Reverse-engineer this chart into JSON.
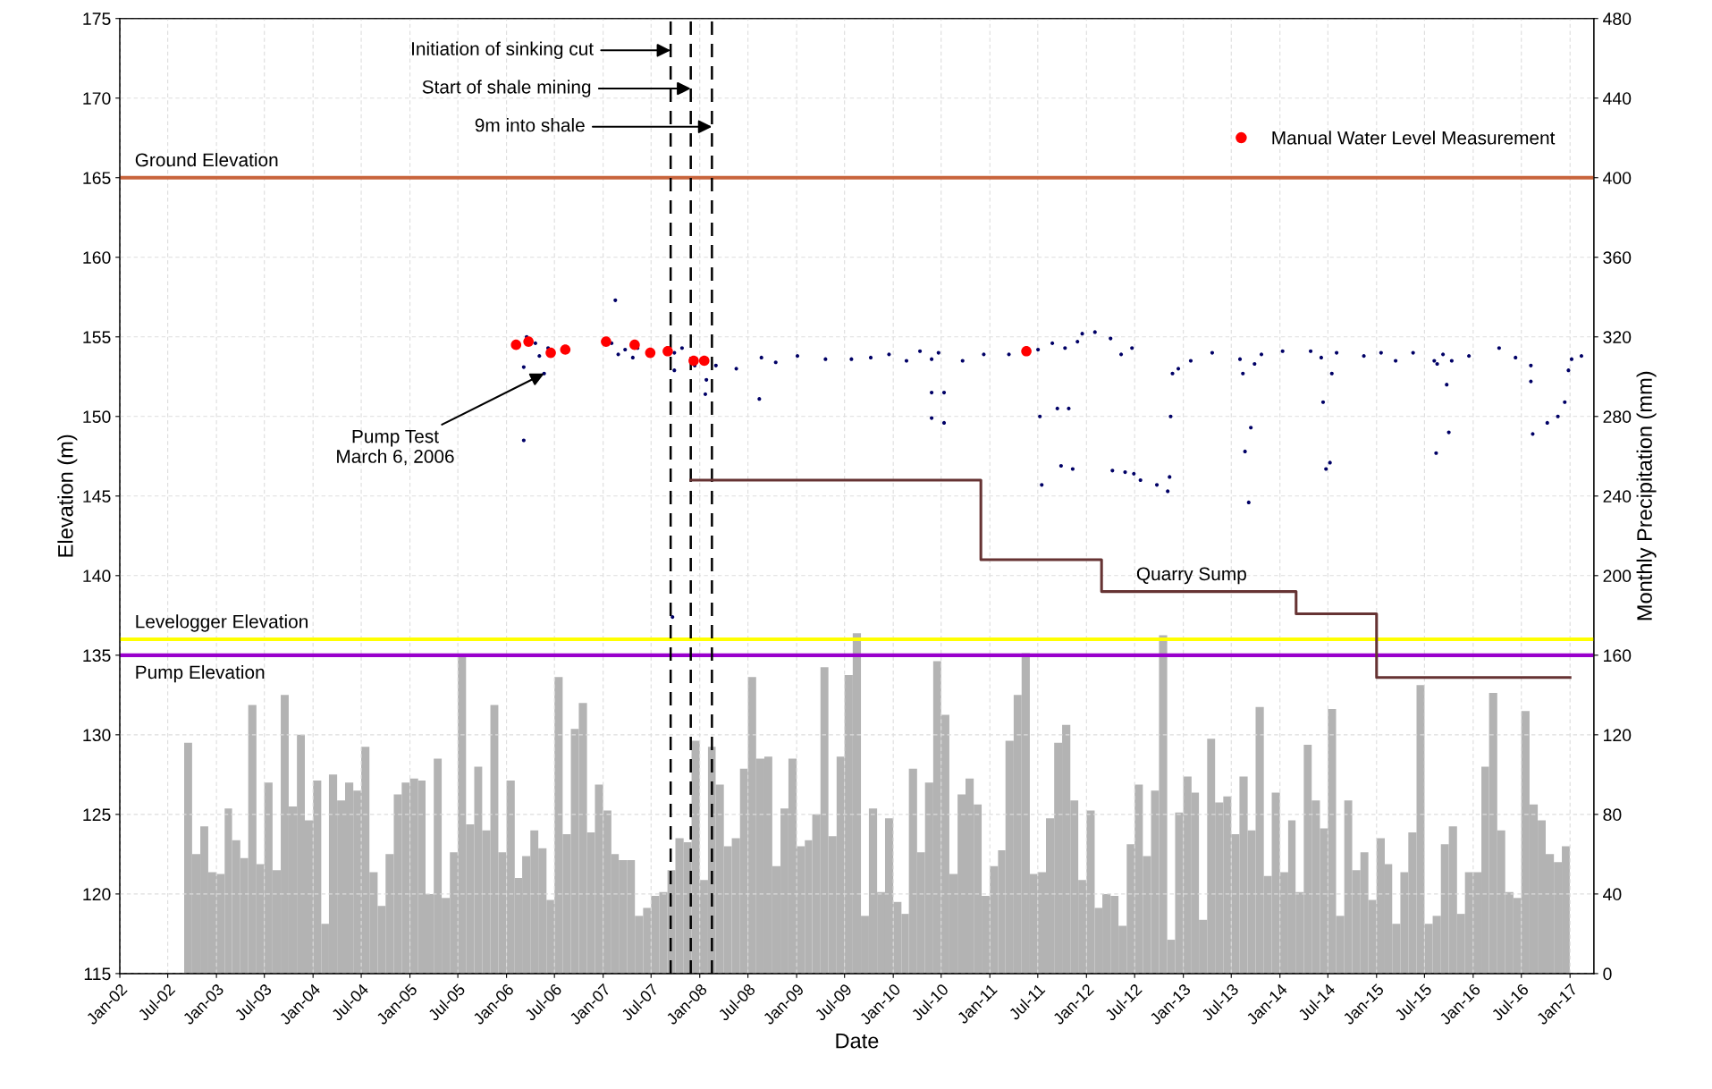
{
  "chart_data": {
    "type": "scatter",
    "xlabel": "Date",
    "ylabel": "Elevation (m)",
    "y2label": "Monthly Precipitation (mm)",
    "xlim": [
      "2002-01-01",
      "2017-04-01"
    ],
    "xticks": [
      {
        "value": "2002-01-01",
        "label": "Jan-02"
      },
      {
        "value": "2002-07-01",
        "label": "Jul-02"
      },
      {
        "value": "2003-01-01",
        "label": "Jan-03"
      },
      {
        "value": "2003-07-01",
        "label": "Jul-03"
      },
      {
        "value": "2004-01-01",
        "label": "Jan-04"
      },
      {
        "value": "2004-07-01",
        "label": "Jul-04"
      },
      {
        "value": "2005-01-01",
        "label": "Jan-05"
      },
      {
        "value": "2005-07-01",
        "label": "Jul-05"
      },
      {
        "value": "2006-01-01",
        "label": "Jan-06"
      },
      {
        "value": "2006-07-01",
        "label": "Jul-06"
      },
      {
        "value": "2007-01-01",
        "label": "Jan-07"
      },
      {
        "value": "2007-07-01",
        "label": "Jul-07"
      },
      {
        "value": "2008-01-01",
        "label": "Jan-08"
      },
      {
        "value": "2008-07-01",
        "label": "Jul-08"
      },
      {
        "value": "2009-01-01",
        "label": "Jan-09"
      },
      {
        "value": "2009-07-01",
        "label": "Jul-09"
      },
      {
        "value": "2010-01-01",
        "label": "Jan-10"
      },
      {
        "value": "2010-07-01",
        "label": "Jul-10"
      },
      {
        "value": "2011-01-01",
        "label": "Jan-11"
      },
      {
        "value": "2011-07-01",
        "label": "Jul-11"
      },
      {
        "value": "2012-01-01",
        "label": "Jan-12"
      },
      {
        "value": "2012-07-01",
        "label": "Jul-12"
      },
      {
        "value": "2013-01-01",
        "label": "Jan-13"
      },
      {
        "value": "2013-07-01",
        "label": "Jul-13"
      },
      {
        "value": "2014-01-01",
        "label": "Jan-14"
      },
      {
        "value": "2014-07-01",
        "label": "Jul-14"
      },
      {
        "value": "2015-01-01",
        "label": "Jan-15"
      },
      {
        "value": "2015-07-01",
        "label": "Jul-15"
      },
      {
        "value": "2016-01-01",
        "label": "Jan-16"
      },
      {
        "value": "2016-07-01",
        "label": "Jul-16"
      },
      {
        "value": "2017-01-01",
        "label": "Jan-17"
      }
    ],
    "ylim": [
      115,
      175
    ],
    "yticks": [
      115,
      120,
      125,
      130,
      135,
      140,
      145,
      150,
      155,
      160,
      165,
      170,
      175
    ],
    "y2lim": [
      0,
      480
    ],
    "y2ticks": [
      0,
      40,
      80,
      120,
      160,
      200,
      240,
      280,
      320,
      360,
      400,
      440,
      480
    ],
    "grid": true,
    "legend": "top right",
    "series": [
      {
        "type": "bar",
        "axis": "y2",
        "color": "#b3b3b3",
        "x": [
          "2002-09",
          "2002-10",
          "2002-11",
          "2002-12",
          "2003-01",
          "2003-02",
          "2003-03",
          "2003-04",
          "2003-05",
          "2003-06",
          "2003-07",
          "2003-08",
          "2003-09",
          "2003-10",
          "2003-11",
          "2003-12",
          "2004-01",
          "2004-02",
          "2004-03",
          "2004-04",
          "2004-05",
          "2004-06",
          "2004-07",
          "2004-08",
          "2004-09",
          "2004-10",
          "2004-11",
          "2004-12",
          "2005-01",
          "2005-02",
          "2005-03",
          "2005-04",
          "2005-05",
          "2005-06",
          "2005-07",
          "2005-08",
          "2005-09",
          "2005-10",
          "2005-11",
          "2005-12",
          "2006-01",
          "2006-02",
          "2006-03",
          "2006-04",
          "2006-05",
          "2006-06",
          "2006-07",
          "2006-08",
          "2006-09",
          "2006-10",
          "2006-11",
          "2006-12",
          "2007-01",
          "2007-02",
          "2007-03",
          "2007-04",
          "2007-05",
          "2007-06",
          "2007-07",
          "2007-08",
          "2007-09",
          "2007-10",
          "2007-11",
          "2007-12",
          "2008-01",
          "2008-02",
          "2008-03",
          "2008-04",
          "2008-05",
          "2008-06",
          "2008-07",
          "2008-08",
          "2008-09",
          "2008-10",
          "2008-11",
          "2008-12",
          "2009-01",
          "2009-02",
          "2009-03",
          "2009-04",
          "2009-05",
          "2009-06",
          "2009-07",
          "2009-08",
          "2009-09",
          "2009-10",
          "2009-11",
          "2009-12",
          "2010-01",
          "2010-02",
          "2010-03",
          "2010-04",
          "2010-05",
          "2010-06",
          "2010-07",
          "2010-08",
          "2010-09",
          "2010-10",
          "2010-11",
          "2010-12",
          "2011-01",
          "2011-02",
          "2011-03",
          "2011-04",
          "2011-05",
          "2011-06",
          "2011-07",
          "2011-08",
          "2011-09",
          "2011-10",
          "2011-11",
          "2011-12",
          "2012-01",
          "2012-02",
          "2012-03",
          "2012-04",
          "2012-05",
          "2012-06",
          "2012-07",
          "2012-08",
          "2012-09",
          "2012-10",
          "2012-11",
          "2012-12",
          "2013-01",
          "2013-02",
          "2013-03",
          "2013-04",
          "2013-05",
          "2013-06",
          "2013-07",
          "2013-08",
          "2013-09",
          "2013-10",
          "2013-11",
          "2013-12",
          "2014-01",
          "2014-02",
          "2014-03",
          "2014-04",
          "2014-05",
          "2014-06",
          "2014-07",
          "2014-08",
          "2014-09",
          "2014-10",
          "2014-11",
          "2014-12",
          "2015-01",
          "2015-02",
          "2015-03",
          "2015-04",
          "2015-05",
          "2015-06",
          "2015-07",
          "2015-08",
          "2015-09",
          "2015-10",
          "2015-11",
          "2015-12",
          "2016-01",
          "2016-02",
          "2016-03",
          "2016-04",
          "2016-05",
          "2016-06",
          "2016-07",
          "2016-08",
          "2016-09",
          "2016-10",
          "2016-11",
          "2016-12"
        ],
        "values": [
          116,
          60,
          74,
          51,
          50,
          83,
          67,
          58,
          135,
          55,
          96,
          52,
          140,
          84,
          120,
          77,
          97,
          25,
          100,
          87,
          96,
          92,
          114,
          51,
          34,
          60,
          90,
          96,
          98,
          97,
          40,
          108,
          38,
          61,
          159,
          75,
          104,
          72,
          135,
          61,
          97,
          48,
          59,
          72,
          63,
          37,
          149,
          70,
          123,
          136,
          71,
          95,
          82,
          60,
          57,
          57,
          29,
          33,
          39,
          41,
          52,
          68,
          66,
          117,
          47,
          114,
          95,
          64,
          68,
          103,
          149,
          108,
          109,
          54,
          83,
          108,
          64,
          67,
          80,
          154,
          69,
          109,
          150,
          171,
          29,
          83,
          41,
          78,
          36,
          30,
          103,
          61,
          96,
          157,
          130,
          50,
          90,
          98,
          85,
          39,
          54,
          62,
          117,
          140,
          161,
          50,
          51,
          78,
          116,
          125,
          87,
          47,
          82,
          33,
          40,
          39,
          24,
          65,
          95,
          59,
          92,
          170,
          17,
          81,
          99,
          91,
          27,
          118,
          86,
          89,
          70,
          99,
          72,
          134,
          49,
          91,
          51,
          77,
          41,
          115,
          87,
          73,
          133,
          29,
          87,
          52,
          61,
          37,
          68,
          55,
          25,
          51,
          71,
          145,
          25,
          29,
          65,
          74,
          30,
          51,
          51,
          104,
          141,
          72,
          41,
          38,
          132,
          85,
          77,
          60,
          56,
          64
        ]
      },
      {
        "color": "#000066",
        "marker": "circle",
        "x": [
          "2006-03-07",
          "2006-03-07",
          "2006-03-18",
          "2006-04-20",
          "2006-05-05",
          "2006-05-23",
          "2006-06-07",
          "2007-02-02",
          "2007-02-16",
          "2007-02-27",
          "2007-03-25",
          "2007-04-23",
          "2007-05-11",
          "2007-09-20",
          "2007-09-27",
          "2007-09-27",
          "2007-10-26",
          "2007-12-13",
          "2008-01-22",
          "2008-01-26",
          "2008-03-02",
          "2008-05-18",
          "2008-08-13",
          "2008-08-21",
          "2008-10-14",
          "2009-01-04",
          "2009-04-20",
          "2009-07-27",
          "2009-10-08",
          "2009-12-16",
          "2010-02-20",
          "2010-04-12",
          "2010-05-26",
          "2010-05-26",
          "2010-05-26",
          "2010-06-21",
          "2010-07-12",
          "2010-07-12",
          "2010-09-20",
          "2010-12-09",
          "2011-03-14",
          "2011-07-02",
          "2011-07-09",
          "2011-07-16",
          "2011-08-25",
          "2011-09-13",
          "2011-09-27",
          "2011-10-12",
          "2011-10-26",
          "2011-11-10",
          "2011-11-28",
          "2011-12-16",
          "2012-02-02",
          "2012-04-01",
          "2012-04-08",
          "2012-05-11",
          "2012-05-26",
          "2012-06-21",
          "2012-06-28",
          "2012-07-23",
          "2012-09-23",
          "2012-11-03",
          "2012-11-10",
          "2012-11-14",
          "2012-11-21",
          "2012-12-13",
          "2013-01-29",
          "2013-04-20",
          "2013-08-03",
          "2013-08-14",
          "2013-08-22",
          "2013-09-05",
          "2013-09-13",
          "2013-09-27",
          "2013-10-23",
          "2014-01-11",
          "2014-04-27",
          "2014-06-06",
          "2014-06-13",
          "2014-06-24",
          "2014-07-09",
          "2014-07-16",
          "2014-08-03",
          "2014-11-14",
          "2015-01-18",
          "2015-03-14",
          "2015-05-19",
          "2015-08-07",
          "2015-08-14",
          "2015-08-18",
          "2015-09-09",
          "2015-09-23",
          "2015-10-01",
          "2015-10-12",
          "2015-12-16",
          "2016-04-08",
          "2016-06-09",
          "2016-08-06",
          "2016-08-06",
          "2016-08-13",
          "2016-10-07",
          "2016-11-16",
          "2016-12-12",
          "2016-12-26",
          "2017-01-07",
          "2017-02-13"
        ],
        "values": [
          153.1,
          148.5,
          155.0,
          154.6,
          153.8,
          152.7,
          154.3,
          154.6,
          157.3,
          153.9,
          154.2,
          153.7,
          154.3,
          137.4,
          154.0,
          152.9,
          154.3,
          153.2,
          151.4,
          152.3,
          153.2,
          153.0,
          151.1,
          153.7,
          153.4,
          153.8,
          153.6,
          153.6,
          153.7,
          153.9,
          153.5,
          154.1,
          153.6,
          151.5,
          149.9,
          154.0,
          151.5,
          149.6,
          153.5,
          153.9,
          153.9,
          154.2,
          150.0,
          145.7,
          154.6,
          150.5,
          146.9,
          154.3,
          150.5,
          146.7,
          154.7,
          155.2,
          155.3,
          154.9,
          146.6,
          153.9,
          146.5,
          154.3,
          146.4,
          146.0,
          145.7,
          145.3,
          146.2,
          150.0,
          152.7,
          153.0,
          153.5,
          154.0,
          153.6,
          152.7,
          147.8,
          144.6,
          149.3,
          153.3,
          153.9,
          154.1,
          154.1,
          153.7,
          150.9,
          146.7,
          147.1,
          152.7,
          154.0,
          153.8,
          154.0,
          153.5,
          154.0,
          153.5,
          147.7,
          153.3,
          153.9,
          152.0,
          149.0,
          153.5,
          153.8,
          154.3,
          153.7,
          153.2,
          152.2,
          148.9,
          149.6,
          150.0,
          150.9,
          152.9,
          153.6,
          153.8
        ]
      },
      {
        "name": "Manual Water Level Measurement",
        "color": "#ff0000",
        "marker": "circle",
        "x": [
          "2006-02-06",
          "2006-03-25",
          "2006-06-17",
          "2006-08-11",
          "2007-01-12",
          "2007-04-30",
          "2007-06-28",
          "2007-09-02",
          "2007-12-09",
          "2008-01-18",
          "2011-05-19"
        ],
        "values": [
          154.5,
          154.7,
          154.0,
          154.2,
          154.7,
          154.5,
          154.0,
          154.1,
          153.5,
          153.5,
          154.1
        ]
      },
      {
        "type": "step",
        "color": "#663333",
        "line_style": "solid",
        "x": [
          "2007-11-28",
          "2010-11-28",
          "2012-02-27",
          "2014-03-03",
          "2015-01-01",
          "2017-01-01"
        ],
        "values": [
          146.0,
          141.0,
          139.0,
          137.6,
          133.6,
          133.6
        ]
      }
    ],
    "ref_lines": [
      {
        "axis": "y",
        "value": 165,
        "label": "Ground Elevation",
        "color": "#c8643c",
        "line_style": "solid"
      },
      {
        "axis": "y",
        "value": 136,
        "label": "Levelogger Elevation",
        "color": "#ffff00",
        "line_style": "solid"
      },
      {
        "axis": "y",
        "value": 135,
        "label": "Pump Elevation",
        "color": "#9900cc",
        "line_style": "solid"
      },
      {
        "axis": "x",
        "value": "2007-09-13",
        "color": "#000000",
        "line_style": "dashed"
      },
      {
        "axis": "x",
        "value": "2007-11-28",
        "color": "#000000",
        "line_style": "dashed"
      },
      {
        "axis": "x",
        "value": "2008-02-16",
        "color": "#000000",
        "line_style": "dashed"
      }
    ],
    "annotations": [
      {
        "text": "Initiation of sinking cut",
        "x": "2007-09-13",
        "y": 173.0
      },
      {
        "text": "Start of shale mining",
        "x": "2007-11-28",
        "y": 170.6
      },
      {
        "text": "9m into shale",
        "x": "2008-02-16",
        "y": 168.2
      },
      {
        "text": "Pump Test\nMarch 6, 2006",
        "x": "2006-05-23",
        "y": 152.7
      },
      {
        "text": "Quarry Sump",
        "x": "2013-02-01",
        "y": 139.0
      }
    ]
  }
}
